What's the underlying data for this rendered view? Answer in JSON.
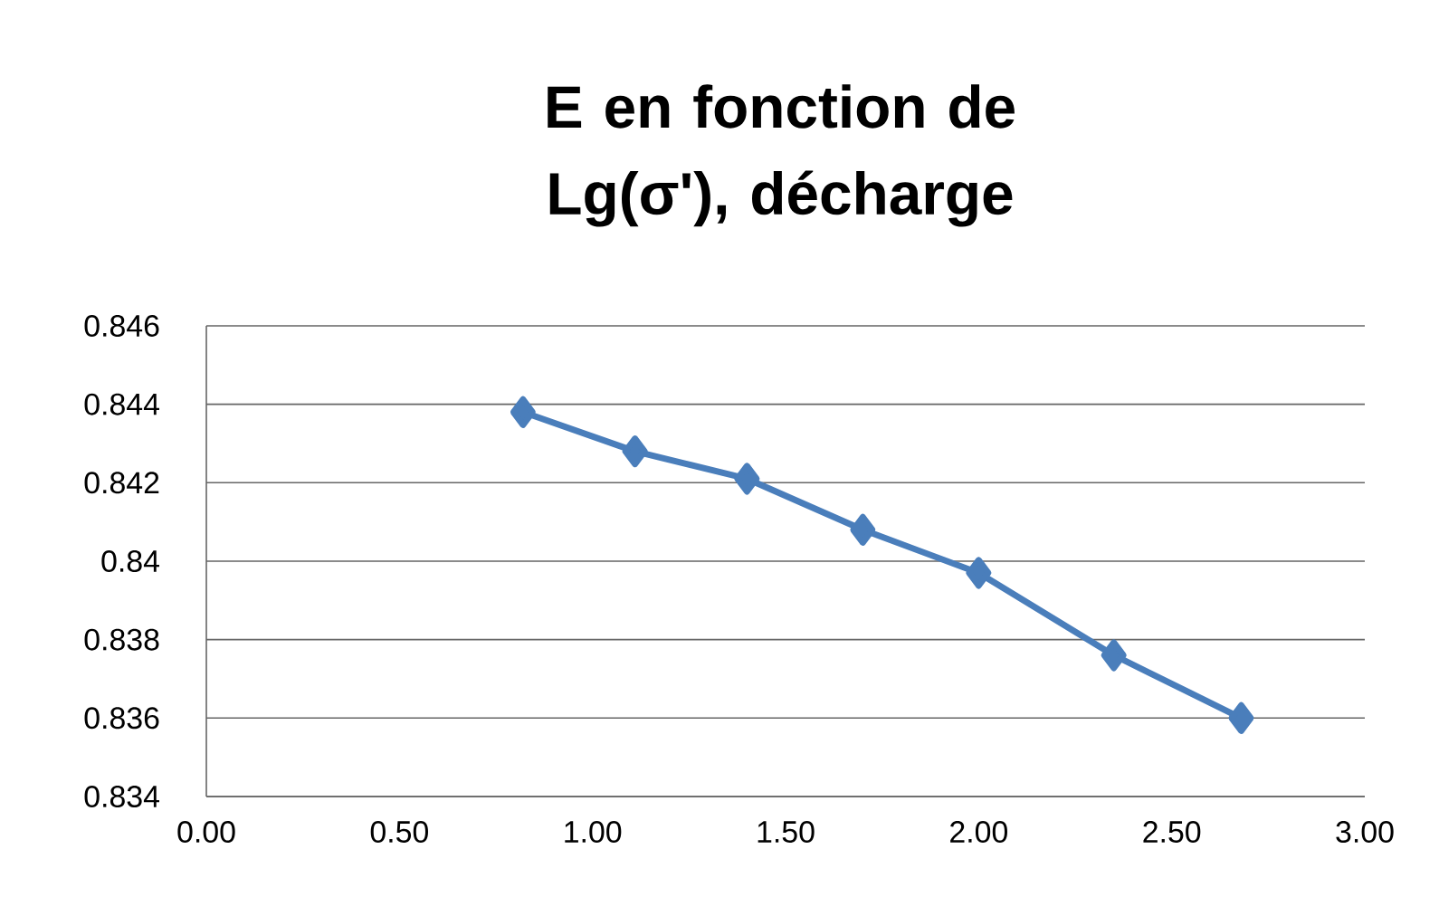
{
  "chart_data": {
    "type": "line",
    "title": "E en fonction de Lg(σ'), décharge",
    "x": [
      0.82,
      1.11,
      1.4,
      1.7,
      2.0,
      2.35,
      2.68
    ],
    "series": [
      {
        "color": "#4a7ebb",
        "values": [
          0.8438,
          0.8428,
          0.8421,
          0.8408,
          0.8397,
          0.8376,
          0.836
        ]
      }
    ],
    "xlim": [
      0,
      3
    ],
    "xticks": [
      {
        "value": 0,
        "label": "0.00"
      },
      {
        "value": 0.5,
        "label": "0.50"
      },
      {
        "value": 1,
        "label": "1.00"
      },
      {
        "value": 1.5,
        "label": "1.50"
      },
      {
        "value": 2,
        "label": "2.00"
      },
      {
        "value": 2.5,
        "label": "2.50"
      },
      {
        "value": 3,
        "label": "3.00"
      }
    ],
    "ylim": [
      0.834,
      0.846
    ],
    "yticks": [
      0.834,
      0.836,
      0.838,
      0.84,
      0.842,
      0.844,
      0.846
    ],
    "grid": "y",
    "marker": "diamond",
    "line_style": "solid"
  }
}
